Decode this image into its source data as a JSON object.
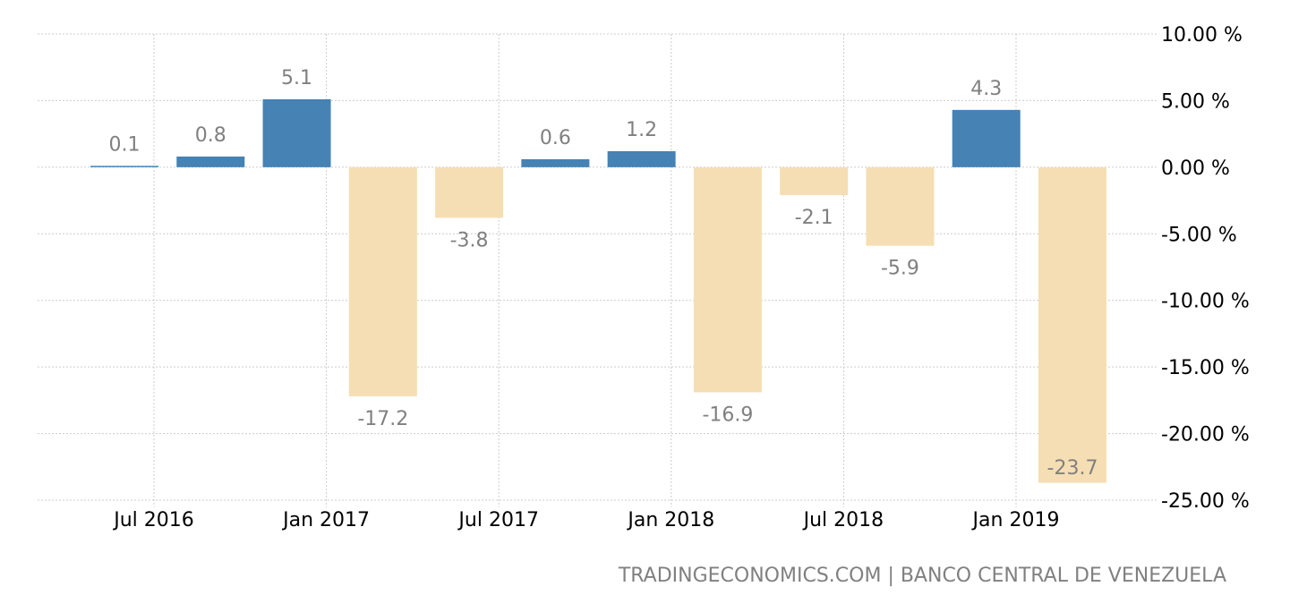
{
  "chart_data": {
    "type": "bar",
    "values": [
      0.1,
      0.8,
      5.1,
      -17.2,
      -3.8,
      0.6,
      1.2,
      -16.9,
      -2.1,
      -5.9,
      4.3,
      -23.7
    ],
    "data_labels": [
      "0.1",
      "0.8",
      "5.1",
      "-17.2",
      "-3.8",
      "0.6",
      "1.2",
      "-16.9",
      "-2.1",
      "-5.9",
      "4.3",
      "-23.7"
    ],
    "x_tick_labels": [
      "Jul 2016",
      "Jan 2017",
      "Jul 2017",
      "Jan 2018",
      "Jul 2018",
      "Jan 2019"
    ],
    "y_ticks": [
      10,
      5,
      0,
      -5,
      -10,
      -15,
      -20,
      -25
    ],
    "y_tick_labels": [
      "10.00 %",
      "5.00 %",
      "0.00 %",
      "-5.00 %",
      "-10.00 %",
      "-15.00 %",
      "-20.00 %",
      "-25.00 %"
    ],
    "ylim": [
      -25,
      10
    ],
    "grid": true,
    "y_axis_position": "right",
    "colors": {
      "positive": "#4682B4",
      "negative": "#F5DEB3",
      "label": "#808080"
    },
    "source": "TRADINGECONOMICS.COM | BANCO CENTRAL DE VENEZUELA"
  }
}
